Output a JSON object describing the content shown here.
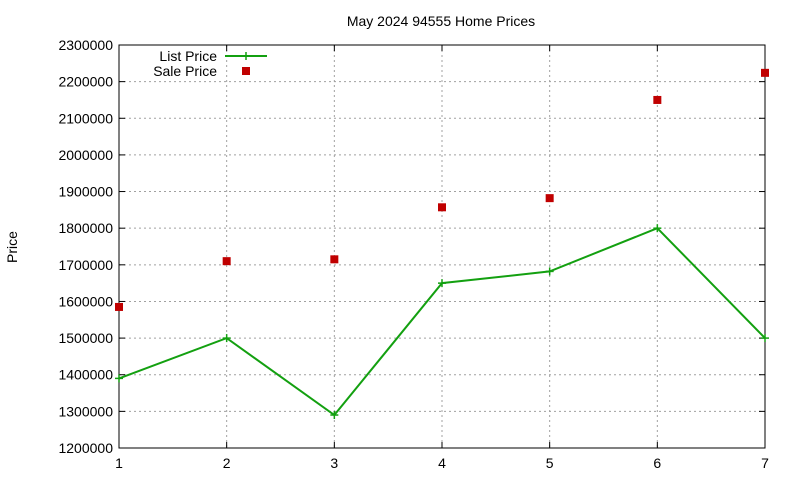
{
  "chart_data": {
    "type": "line",
    "title": "May 2024 94555 Home Prices",
    "xlabel": "",
    "ylabel": "Price",
    "x": [
      1,
      2,
      3,
      4,
      5,
      6,
      7
    ],
    "xlim": [
      1,
      7
    ],
    "ylim": [
      1200000,
      2300000
    ],
    "xticks": [
      "1",
      "2",
      "3",
      "4",
      "5",
      "6",
      "7"
    ],
    "yticks": [
      "1200000",
      "1300000",
      "1400000",
      "1500000",
      "1600000",
      "1700000",
      "1800000",
      "1900000",
      "2000000",
      "2100000",
      "2200000",
      "2300000"
    ],
    "grid": true,
    "legend_position": "top-left",
    "series": [
      {
        "name": "List Price",
        "style": "linespoints",
        "marker": "plus",
        "color": "#13a010",
        "values": [
          1390000,
          1500000,
          1290000,
          1650000,
          1682000,
          1800000,
          1500000
        ]
      },
      {
        "name": "Sale Price",
        "style": "points",
        "marker": "square",
        "color": "#c00000",
        "values": [
          1585000,
          1710000,
          1715000,
          1857000,
          1882000,
          2150000,
          2224000
        ]
      }
    ]
  }
}
